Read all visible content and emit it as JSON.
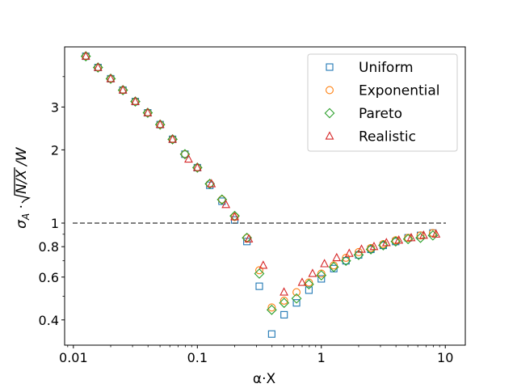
{
  "chart_data": {
    "type": "scatter",
    "title": "",
    "xlabel": "α·X",
    "ylabel_parts": {
      "sigma": "σ",
      "sub": "A",
      "dot": " · ",
      "radicand": "N/X",
      "tail": "/W"
    },
    "xscale": "log",
    "yscale": "log",
    "xlim": [
      0.0085,
      14.5
    ],
    "ylim": [
      0.315,
      5.3
    ],
    "x_ticks": [
      {
        "value": 0.01,
        "label": "0.01"
      },
      {
        "value": 0.1,
        "label": "0.1"
      },
      {
        "value": 1,
        "label": "1"
      },
      {
        "value": 10,
        "label": "10"
      }
    ],
    "y_ticks": [
      {
        "value": 0.4,
        "label": "0.4"
      },
      {
        "value": 0.6,
        "label": "0.6"
      },
      {
        "value": 0.8,
        "label": "0.8"
      },
      {
        "value": 1,
        "label": "1"
      },
      {
        "value": 2,
        "label": "2"
      },
      {
        "value": 3,
        "label": "3"
      }
    ],
    "reference_line": {
      "y": 1,
      "style": "dashed",
      "color": "#555555"
    },
    "legend": {
      "placement": "top-right"
    },
    "series": [
      {
        "name": "Uniform",
        "marker": "square",
        "color": "#1f77b4",
        "points": [
          [
            0.0126,
            4.85
          ],
          [
            0.0158,
            4.36
          ],
          [
            0.02,
            3.92
          ],
          [
            0.0251,
            3.52
          ],
          [
            0.0316,
            3.16
          ],
          [
            0.0398,
            2.84
          ],
          [
            0.0501,
            2.54
          ],
          [
            0.0631,
            2.21
          ],
          [
            0.0794,
            1.92
          ],
          [
            0.1,
            1.69
          ],
          [
            0.126,
            1.43
          ],
          [
            0.158,
            1.23
          ],
          [
            0.2,
            1.03
          ],
          [
            0.251,
            0.84
          ],
          [
            0.316,
            0.55
          ],
          [
            0.398,
            0.35
          ],
          [
            0.501,
            0.42
          ],
          [
            0.631,
            0.47
          ],
          [
            0.794,
            0.53
          ],
          [
            1.0,
            0.59
          ],
          [
            1.26,
            0.65
          ],
          [
            1.58,
            0.7
          ],
          [
            2.0,
            0.74
          ],
          [
            2.51,
            0.78
          ],
          [
            3.16,
            0.81
          ],
          [
            3.98,
            0.84
          ],
          [
            5.01,
            0.87
          ],
          [
            6.31,
            0.89
          ],
          [
            7.94,
            0.91
          ]
        ]
      },
      {
        "name": "Exponential",
        "marker": "circle",
        "color": "#ff7f0e",
        "points": [
          [
            0.0126,
            4.85
          ],
          [
            0.0158,
            4.36
          ],
          [
            0.02,
            3.92
          ],
          [
            0.0251,
            3.52
          ],
          [
            0.0316,
            3.16
          ],
          [
            0.0398,
            2.84
          ],
          [
            0.0501,
            2.54
          ],
          [
            0.0631,
            2.21
          ],
          [
            0.0794,
            1.92
          ],
          [
            0.1,
            1.69
          ],
          [
            0.126,
            1.45
          ],
          [
            0.158,
            1.25
          ],
          [
            0.2,
            1.06
          ],
          [
            0.251,
            0.87
          ],
          [
            0.316,
            0.64
          ],
          [
            0.398,
            0.45
          ],
          [
            0.501,
            0.48
          ],
          [
            0.631,
            0.52
          ],
          [
            0.794,
            0.57
          ],
          [
            1.0,
            0.62
          ],
          [
            1.26,
            0.67
          ],
          [
            1.58,
            0.72
          ],
          [
            2.0,
            0.76
          ],
          [
            2.51,
            0.79
          ],
          [
            3.16,
            0.82
          ],
          [
            3.98,
            0.85
          ],
          [
            5.01,
            0.87
          ],
          [
            6.31,
            0.89
          ],
          [
            7.94,
            0.91
          ]
        ]
      },
      {
        "name": "Pareto",
        "marker": "diamond",
        "color": "#2ca02c",
        "points": [
          [
            0.0126,
            4.85
          ],
          [
            0.0158,
            4.36
          ],
          [
            0.02,
            3.92
          ],
          [
            0.0251,
            3.52
          ],
          [
            0.0316,
            3.16
          ],
          [
            0.0398,
            2.84
          ],
          [
            0.0501,
            2.54
          ],
          [
            0.0631,
            2.21
          ],
          [
            0.0794,
            1.92
          ],
          [
            0.1,
            1.69
          ],
          [
            0.126,
            1.45
          ],
          [
            0.158,
            1.25
          ],
          [
            0.2,
            1.07
          ],
          [
            0.251,
            0.87
          ],
          [
            0.316,
            0.62
          ],
          [
            0.398,
            0.44
          ],
          [
            0.501,
            0.47
          ],
          [
            0.631,
            0.49
          ],
          [
            0.794,
            0.56
          ],
          [
            1.0,
            0.61
          ],
          [
            1.26,
            0.66
          ],
          [
            1.58,
            0.7
          ],
          [
            2.0,
            0.74
          ],
          [
            2.51,
            0.78
          ],
          [
            3.16,
            0.81
          ],
          [
            3.98,
            0.84
          ],
          [
            5.01,
            0.86
          ],
          [
            6.31,
            0.87
          ],
          [
            7.94,
            0.89
          ]
        ]
      },
      {
        "name": "Realistic",
        "marker": "triangle",
        "color": "#d62728",
        "points": [
          [
            0.0126,
            4.85
          ],
          [
            0.0158,
            4.36
          ],
          [
            0.02,
            3.92
          ],
          [
            0.0251,
            3.52
          ],
          [
            0.0316,
            3.16
          ],
          [
            0.0398,
            2.84
          ],
          [
            0.0501,
            2.54
          ],
          [
            0.0631,
            2.21
          ],
          [
            0.085,
            1.83
          ],
          [
            0.1,
            1.69
          ],
          [
            0.13,
            1.45
          ],
          [
            0.17,
            1.19
          ],
          [
            0.2,
            1.06
          ],
          [
            0.26,
            0.86
          ],
          [
            0.34,
            0.67
          ],
          [
            0.5,
            0.52
          ],
          [
            0.7,
            0.57
          ],
          [
            0.85,
            0.62
          ],
          [
            1.06,
            0.68
          ],
          [
            1.33,
            0.72
          ],
          [
            1.68,
            0.75
          ],
          [
            2.11,
            0.78
          ],
          [
            2.66,
            0.8
          ],
          [
            3.35,
            0.83
          ],
          [
            4.22,
            0.85
          ],
          [
            5.31,
            0.87
          ],
          [
            6.69,
            0.89
          ],
          [
            8.42,
            0.9
          ]
        ]
      }
    ]
  }
}
